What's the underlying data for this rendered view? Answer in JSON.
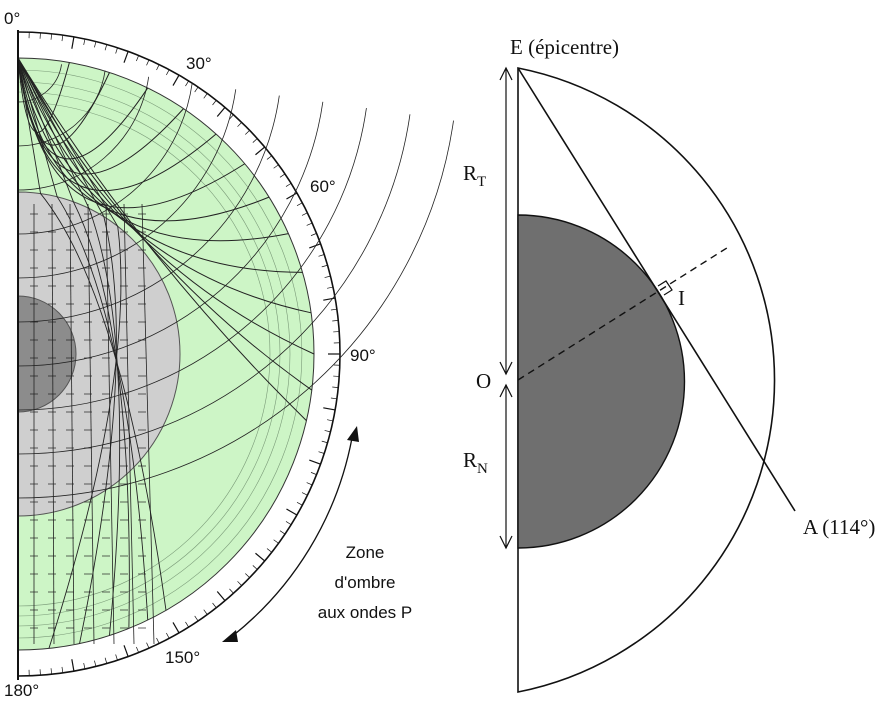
{
  "left_figure": {
    "angle_labels": [
      "0°",
      "30°",
      "60°",
      "90°",
      "150°",
      "180°"
    ],
    "shadow_zone_lines": [
      "Zone",
      "d'ombre",
      "aux ondes P"
    ],
    "colors": {
      "mantle": "#cdf5c6",
      "outer_core": "#cfcfcf",
      "inner_core": "#8c8c8c",
      "rays": "#222222"
    }
  },
  "right_figure": {
    "epicentre_label": "E (épicentre)",
    "radius_earth_label": "R",
    "radius_earth_sub": "T",
    "radius_core_label": "R",
    "radius_core_sub": "N",
    "center_label": "O",
    "tangent_point_label": "I",
    "arrival_label": "A (114°)",
    "colors": {
      "core": "#6f6f6f",
      "outline": "#111111"
    }
  }
}
